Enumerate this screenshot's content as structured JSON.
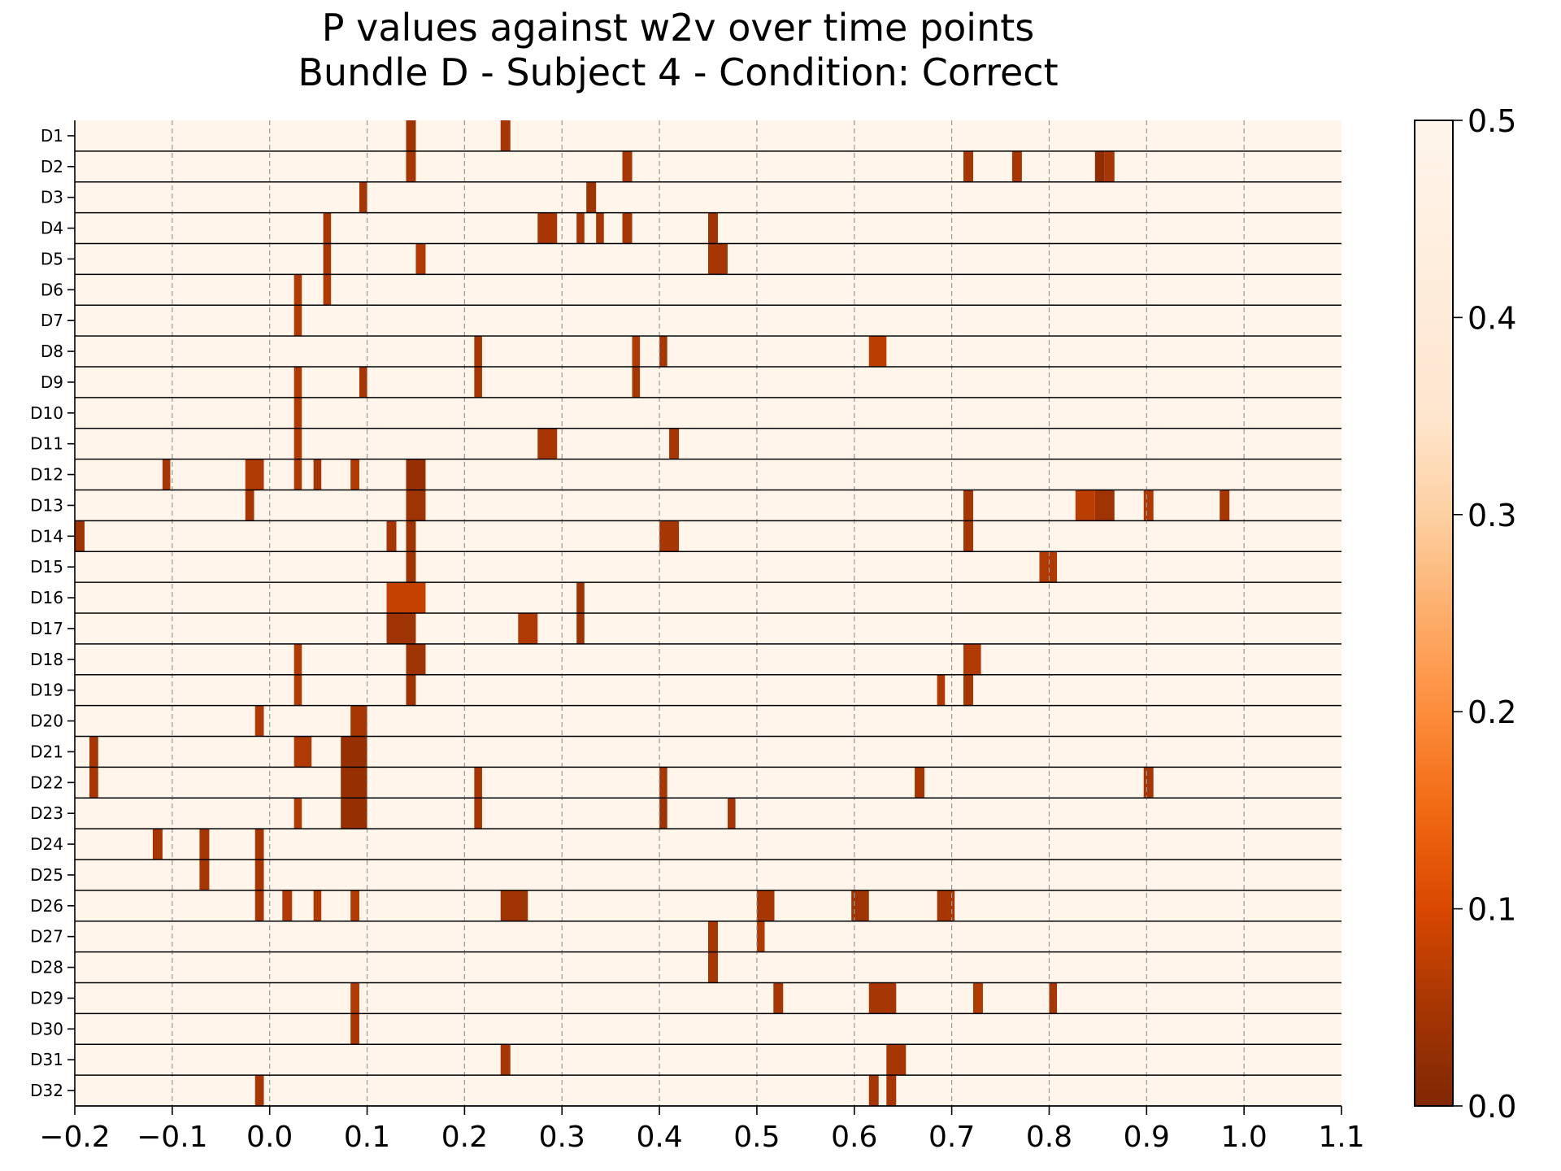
{
  "chart_data": {
    "type": "heatmap",
    "title_lines": [
      "P values against w2v over time points",
      "Bundle D - Subject 4 - Condition: Correct"
    ],
    "xlim": [
      -0.2,
      1.1
    ],
    "x_ticks": [
      "−0.2",
      "−0.1",
      "0.0",
      "0.1",
      "0.2",
      "0.3",
      "0.4",
      "0.5",
      "0.6",
      "0.7",
      "0.8",
      "0.9",
      "1.0",
      "1.1"
    ],
    "x_tick_values": [
      -0.2,
      -0.1,
      0.0,
      0.1,
      0.2,
      0.3,
      0.4,
      0.5,
      0.6,
      0.7,
      0.8,
      0.9,
      1.0,
      1.1
    ],
    "grid": "vertical dashed at x ticks",
    "colormap": "Oranges_r",
    "background_value": 0.5,
    "colorbar": {
      "range": [
        0.0,
        0.5
      ],
      "ticks": [
        "0.0",
        "0.1",
        "0.2",
        "0.3",
        "0.4",
        "0.5"
      ],
      "tick_values": [
        0.0,
        0.1,
        0.2,
        0.3,
        0.4,
        0.5
      ],
      "position": "right"
    },
    "rows": [
      {
        "label": "D1",
        "segments": [
          [
            0.14,
            0.15,
            0.04
          ],
          [
            0.237,
            0.247,
            0.05
          ]
        ]
      },
      {
        "label": "D2",
        "segments": [
          [
            0.14,
            0.15,
            0.05
          ],
          [
            0.362,
            0.372,
            0.05
          ],
          [
            0.712,
            0.722,
            0.05
          ],
          [
            0.762,
            0.772,
            0.05
          ],
          [
            0.847,
            0.857,
            0.02
          ],
          [
            0.857,
            0.867,
            0.05
          ]
        ]
      },
      {
        "label": "D3",
        "segments": [
          [
            0.092,
            0.1,
            0.05
          ],
          [
            0.325,
            0.335,
            0.04
          ]
        ]
      },
      {
        "label": "D4",
        "segments": [
          [
            0.055,
            0.063,
            0.05
          ],
          [
            0.275,
            0.295,
            0.05
          ],
          [
            0.315,
            0.323,
            0.05
          ],
          [
            0.335,
            0.343,
            0.05
          ],
          [
            0.362,
            0.372,
            0.05
          ],
          [
            0.45,
            0.46,
            0.04
          ]
        ]
      },
      {
        "label": "D5",
        "segments": [
          [
            0.055,
            0.063,
            0.05
          ],
          [
            0.15,
            0.16,
            0.06
          ],
          [
            0.45,
            0.47,
            0.05
          ]
        ]
      },
      {
        "label": "D6",
        "segments": [
          [
            0.025,
            0.033,
            0.06
          ],
          [
            0.055,
            0.063,
            0.06
          ]
        ]
      },
      {
        "label": "D7",
        "segments": [
          [
            0.025,
            0.033,
            0.06
          ]
        ]
      },
      {
        "label": "D8",
        "segments": [
          [
            0.21,
            0.218,
            0.05
          ],
          [
            0.372,
            0.38,
            0.06
          ],
          [
            0.4,
            0.408,
            0.05
          ],
          [
            0.615,
            0.633,
            0.07
          ]
        ]
      },
      {
        "label": "D9",
        "segments": [
          [
            0.025,
            0.033,
            0.06
          ],
          [
            0.092,
            0.1,
            0.05
          ],
          [
            0.21,
            0.218,
            0.05
          ],
          [
            0.372,
            0.38,
            0.05
          ]
        ]
      },
      {
        "label": "D10",
        "segments": [
          [
            0.025,
            0.033,
            0.06
          ]
        ]
      },
      {
        "label": "D11",
        "segments": [
          [
            0.025,
            0.033,
            0.06
          ],
          [
            0.275,
            0.295,
            0.05
          ],
          [
            0.41,
            0.42,
            0.05
          ]
        ]
      },
      {
        "label": "D12",
        "segments": [
          [
            -0.11,
            -0.102,
            0.05
          ],
          [
            -0.025,
            -0.006,
            0.06
          ],
          [
            0.025,
            0.033,
            0.06
          ],
          [
            0.045,
            0.053,
            0.05
          ],
          [
            0.083,
            0.092,
            0.06
          ],
          [
            0.14,
            0.16,
            0.03
          ]
        ]
      },
      {
        "label": "D13",
        "segments": [
          [
            -0.025,
            -0.016,
            0.05
          ],
          [
            0.14,
            0.16,
            0.04
          ],
          [
            0.712,
            0.722,
            0.05
          ],
          [
            0.827,
            0.847,
            0.07
          ],
          [
            0.847,
            0.867,
            0.04
          ],
          [
            0.897,
            0.907,
            0.06
          ],
          [
            0.975,
            0.985,
            0.05
          ]
        ]
      },
      {
        "label": "D14",
        "segments": [
          [
            -0.2,
            -0.19,
            0.04
          ],
          [
            0.12,
            0.13,
            0.05
          ],
          [
            0.14,
            0.15,
            0.04
          ],
          [
            0.4,
            0.42,
            0.05
          ],
          [
            0.712,
            0.722,
            0.05
          ]
        ]
      },
      {
        "label": "D15",
        "segments": [
          [
            0.14,
            0.15,
            0.04
          ],
          [
            0.79,
            0.808,
            0.06
          ]
        ]
      },
      {
        "label": "D16",
        "segments": [
          [
            0.12,
            0.16,
            0.08
          ],
          [
            0.315,
            0.323,
            0.04
          ]
        ]
      },
      {
        "label": "D17",
        "segments": [
          [
            0.12,
            0.15,
            0.04
          ],
          [
            0.255,
            0.275,
            0.06
          ],
          [
            0.315,
            0.323,
            0.04
          ]
        ]
      },
      {
        "label": "D18",
        "segments": [
          [
            0.025,
            0.033,
            0.06
          ],
          [
            0.14,
            0.16,
            0.04
          ],
          [
            0.712,
            0.73,
            0.06
          ]
        ]
      },
      {
        "label": "D19",
        "segments": [
          [
            0.025,
            0.033,
            0.06
          ],
          [
            0.14,
            0.15,
            0.04
          ],
          [
            0.685,
            0.693,
            0.06
          ],
          [
            0.712,
            0.722,
            0.05
          ]
        ]
      },
      {
        "label": "D20",
        "segments": [
          [
            -0.015,
            -0.006,
            0.06
          ],
          [
            0.083,
            0.1,
            0.05
          ]
        ]
      },
      {
        "label": "D21",
        "segments": [
          [
            -0.185,
            -0.176,
            0.05
          ],
          [
            0.025,
            0.043,
            0.06
          ],
          [
            0.073,
            0.1,
            0.03
          ]
        ]
      },
      {
        "label": "D22",
        "segments": [
          [
            -0.185,
            -0.176,
            0.05
          ],
          [
            0.073,
            0.1,
            0.03
          ],
          [
            0.21,
            0.218,
            0.05
          ],
          [
            0.4,
            0.408,
            0.05
          ],
          [
            0.662,
            0.672,
            0.05
          ],
          [
            0.897,
            0.907,
            0.05
          ]
        ]
      },
      {
        "label": "D23",
        "segments": [
          [
            0.025,
            0.033,
            0.06
          ],
          [
            0.073,
            0.1,
            0.03
          ],
          [
            0.21,
            0.218,
            0.05
          ],
          [
            0.4,
            0.408,
            0.04
          ],
          [
            0.47,
            0.478,
            0.05
          ]
        ]
      },
      {
        "label": "D24",
        "segments": [
          [
            -0.12,
            -0.11,
            0.05
          ],
          [
            -0.072,
            -0.062,
            0.05
          ],
          [
            -0.015,
            -0.006,
            0.05
          ]
        ]
      },
      {
        "label": "D25",
        "segments": [
          [
            -0.072,
            -0.062,
            0.05
          ],
          [
            -0.015,
            -0.006,
            0.05
          ]
        ]
      },
      {
        "label": "D26",
        "segments": [
          [
            -0.015,
            -0.006,
            0.05
          ],
          [
            0.013,
            0.023,
            0.06
          ],
          [
            0.045,
            0.053,
            0.06
          ],
          [
            0.083,
            0.092,
            0.06
          ],
          [
            0.237,
            0.265,
            0.04
          ],
          [
            0.5,
            0.518,
            0.05
          ],
          [
            0.597,
            0.615,
            0.04
          ],
          [
            0.685,
            0.703,
            0.05
          ]
        ]
      },
      {
        "label": "D27",
        "segments": [
          [
            0.45,
            0.46,
            0.05
          ],
          [
            0.5,
            0.508,
            0.06
          ]
        ]
      },
      {
        "label": "D28",
        "segments": [
          [
            0.45,
            0.46,
            0.05
          ]
        ]
      },
      {
        "label": "D29",
        "segments": [
          [
            0.083,
            0.092,
            0.06
          ],
          [
            0.517,
            0.527,
            0.05
          ],
          [
            0.615,
            0.643,
            0.05
          ],
          [
            0.722,
            0.732,
            0.06
          ],
          [
            0.8,
            0.808,
            0.05
          ]
        ]
      },
      {
        "label": "D30",
        "segments": [
          [
            0.083,
            0.092,
            0.05
          ]
        ]
      },
      {
        "label": "D31",
        "segments": [
          [
            0.237,
            0.247,
            0.05
          ],
          [
            0.633,
            0.653,
            0.05
          ]
        ]
      },
      {
        "label": "D32",
        "segments": [
          [
            -0.015,
            -0.006,
            0.05
          ],
          [
            0.615,
            0.625,
            0.05
          ],
          [
            0.633,
            0.643,
            0.05
          ]
        ]
      }
    ]
  }
}
